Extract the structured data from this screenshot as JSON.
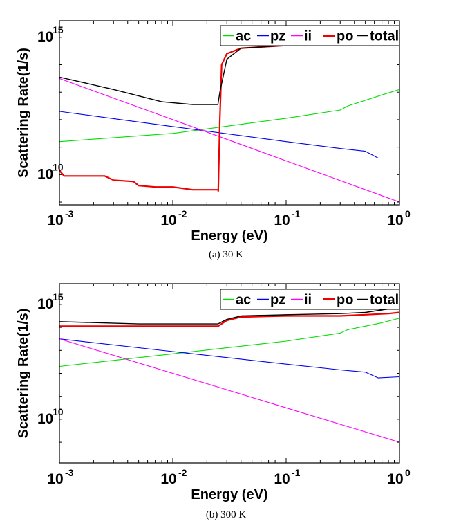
{
  "chart_data": [
    {
      "type": "line",
      "caption": "(a)  30 K",
      "xlabel": "Energy (eV)",
      "ylabel": "Scattering Rate(1/s)",
      "xscale": "log",
      "yscale": "log",
      "xlim": [
        0.001,
        1
      ],
      "ylim_exponent": [
        8.9,
        15.6
      ],
      "x_ticks": [
        {
          "base": "10",
          "exp": "-3",
          "value": 0.001
        },
        {
          "base": "10",
          "exp": "-2",
          "value": 0.01
        },
        {
          "base": "10",
          "exp": "-1",
          "value": 0.1
        },
        {
          "base": "10",
          "exp": "0",
          "value": 1
        }
      ],
      "y_ticks": [
        {
          "base": "10",
          "exp": "10",
          "value_exponent": 10
        },
        {
          "base": "10",
          "exp": "15",
          "value_exponent": 15
        }
      ],
      "legend_placement": "top-right",
      "series": [
        {
          "name": "ac",
          "color": "#00dd00",
          "points": [
            [
              0.001,
              11.2
            ],
            [
              0.01,
              11.5
            ],
            [
              0.1,
              12.05
            ],
            [
              0.3,
              12.35
            ],
            [
              0.35,
              12.5
            ],
            [
              0.7,
              12.9
            ],
            [
              1,
              13.1
            ]
          ]
        },
        {
          "name": "pz",
          "color": "#0000ee",
          "points": [
            [
              0.001,
              12.3
            ],
            [
              0.01,
              11.75
            ],
            [
              0.1,
              11.2
            ],
            [
              0.3,
              10.95
            ],
            [
              0.5,
              10.85
            ],
            [
              0.65,
              10.6
            ],
            [
              1,
              10.6
            ]
          ]
        },
        {
          "name": "ii",
          "color": "#ff00ff",
          "points": [
            [
              0.001,
              13.5
            ],
            [
              0.01,
              12.0
            ],
            [
              0.1,
              10.5
            ],
            [
              1,
              9.0
            ]
          ]
        },
        {
          "name": "po",
          "color": "#ee0000",
          "points": [
            [
              0.001,
              10.15
            ],
            [
              0.0011,
              9.95
            ],
            [
              0.0025,
              9.95
            ],
            [
              0.003,
              9.8
            ],
            [
              0.0045,
              9.75
            ],
            [
              0.005,
              9.6
            ],
            [
              0.007,
              9.55
            ],
            [
              0.01,
              9.55
            ],
            [
              0.015,
              9.45
            ],
            [
              0.025,
              9.45
            ],
            [
              0.0252,
              9.4
            ],
            [
              0.026,
              12.0
            ],
            [
              0.027,
              14.0
            ],
            [
              0.03,
              14.4
            ],
            [
              0.04,
              14.6
            ],
            [
              0.1,
              14.7
            ],
            [
              0.3,
              14.7
            ],
            [
              0.5,
              14.7
            ],
            [
              0.8,
              14.8
            ],
            [
              1,
              14.8
            ]
          ]
        },
        {
          "name": "total",
          "color": "#000000",
          "points": [
            [
              0.001,
              13.55
            ],
            [
              0.003,
              13.1
            ],
            [
              0.008,
              12.65
            ],
            [
              0.015,
              12.55
            ],
            [
              0.025,
              12.55
            ],
            [
              0.026,
              13.0
            ],
            [
              0.03,
              14.2
            ],
            [
              0.04,
              14.6
            ],
            [
              0.1,
              14.7
            ],
            [
              0.3,
              14.7
            ],
            [
              0.5,
              14.75
            ],
            [
              0.8,
              14.85
            ],
            [
              1,
              14.9
            ]
          ]
        }
      ]
    },
    {
      "type": "line",
      "caption": "(b)  300 K",
      "xlabel": "Energy (eV)",
      "ylabel": "Scattering Rate(1/s)",
      "xscale": "log",
      "yscale": "log",
      "xlim": [
        0.001,
        1
      ],
      "ylim_exponent": [
        8.1,
        15.9
      ],
      "x_ticks": [
        {
          "base": "10",
          "exp": "-3",
          "value": 0.001
        },
        {
          "base": "10",
          "exp": "-2",
          "value": 0.01
        },
        {
          "base": "10",
          "exp": "-1",
          "value": 0.1
        },
        {
          "base": "10",
          "exp": "0",
          "value": 1
        }
      ],
      "y_ticks": [
        {
          "base": "10",
          "exp": "10",
          "value_exponent": 10
        },
        {
          "base": "10",
          "exp": "15",
          "value_exponent": 15
        }
      ],
      "legend_placement": "top-right",
      "series": [
        {
          "name": "ac",
          "color": "#00dd00",
          "points": [
            [
              0.001,
              12.3
            ],
            [
              0.01,
              12.85
            ],
            [
              0.1,
              13.4
            ],
            [
              0.3,
              13.75
            ],
            [
              0.35,
              13.9
            ],
            [
              0.7,
              14.2
            ],
            [
              1,
              14.4
            ]
          ]
        },
        {
          "name": "pz",
          "color": "#0000ee",
          "points": [
            [
              0.001,
              13.5
            ],
            [
              0.01,
              12.95
            ],
            [
              0.1,
              12.4
            ],
            [
              0.3,
              12.15
            ],
            [
              0.5,
              12.05
            ],
            [
              0.65,
              11.8
            ],
            [
              1,
              11.85
            ]
          ]
        },
        {
          "name": "ii",
          "color": "#ff00ff",
          "points": [
            [
              0.001,
              13.5
            ],
            [
              0.01,
              12.0
            ],
            [
              0.1,
              10.5
            ],
            [
              1,
              9.0
            ]
          ]
        },
        {
          "name": "po",
          "color": "#ee0000",
          "points": [
            [
              0.001,
              14.05
            ],
            [
              0.005,
              14.05
            ],
            [
              0.015,
              14.05
            ],
            [
              0.025,
              14.05
            ],
            [
              0.03,
              14.3
            ],
            [
              0.04,
              14.45
            ],
            [
              0.1,
              14.5
            ],
            [
              0.3,
              14.5
            ],
            [
              0.5,
              14.55
            ],
            [
              0.8,
              14.6
            ],
            [
              1,
              14.65
            ]
          ]
        },
        {
          "name": "total",
          "color": "#000000",
          "points": [
            [
              0.001,
              14.25
            ],
            [
              0.005,
              14.15
            ],
            [
              0.015,
              14.15
            ],
            [
              0.025,
              14.15
            ],
            [
              0.03,
              14.35
            ],
            [
              0.04,
              14.5
            ],
            [
              0.1,
              14.55
            ],
            [
              0.3,
              14.6
            ],
            [
              0.5,
              14.65
            ],
            [
              0.8,
              14.8
            ],
            [
              1,
              14.9
            ]
          ]
        }
      ]
    }
  ]
}
